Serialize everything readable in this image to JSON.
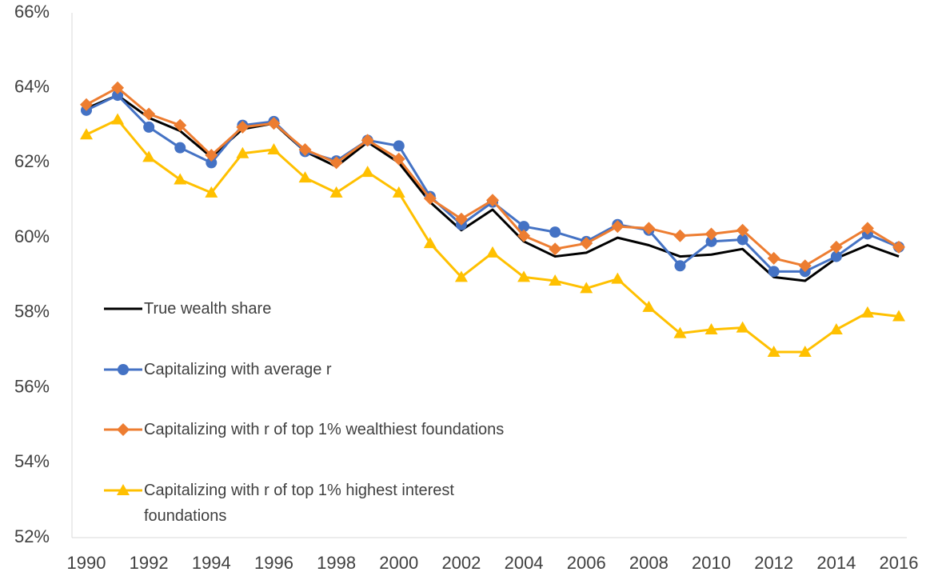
{
  "chart_data": {
    "type": "line",
    "x": [
      1990,
      1991,
      1992,
      1993,
      1994,
      1995,
      1996,
      1997,
      1998,
      1999,
      2000,
      2001,
      2002,
      2003,
      2004,
      2005,
      2006,
      2007,
      2008,
      2009,
      2010,
      2011,
      2012,
      2013,
      2014,
      2015,
      2016
    ],
    "xlim": [
      1990,
      2016
    ],
    "xticks": [
      1990,
      1992,
      1994,
      1996,
      1998,
      2000,
      2002,
      2004,
      2006,
      2008,
      2010,
      2012,
      2014,
      2016
    ],
    "ylim": [
      52,
      66
    ],
    "yticks": [
      {
        "value": 52,
        "label": "52%"
      },
      {
        "value": 54,
        "label": "54%"
      },
      {
        "value": 56,
        "label": "56%"
      },
      {
        "value": 58,
        "label": "58%"
      },
      {
        "value": 60,
        "label": "60%"
      },
      {
        "value": 62,
        "label": "62%"
      },
      {
        "value": 64,
        "label": "64%"
      },
      {
        "value": 66,
        "label": "66%"
      }
    ],
    "legend": "left",
    "series": [
      {
        "name": "True wealth share",
        "color": "#000000",
        "marker": "none",
        "values": [
          63.45,
          63.8,
          63.2,
          62.85,
          62.15,
          62.9,
          63.05,
          62.3,
          61.9,
          62.55,
          62.0,
          60.95,
          60.2,
          60.75,
          59.9,
          59.5,
          59.6,
          60.0,
          59.8,
          59.5,
          59.55,
          59.7,
          58.95,
          58.85,
          59.45,
          59.8,
          59.5
        ]
      },
      {
        "name": "Capitalizing with average r",
        "color": "#4472c4",
        "marker": "circle",
        "values": [
          63.4,
          63.8,
          62.95,
          62.4,
          62.0,
          63.0,
          63.1,
          62.3,
          62.05,
          62.6,
          62.45,
          61.1,
          60.35,
          60.95,
          60.3,
          60.15,
          59.9,
          60.35,
          60.2,
          59.25,
          59.9,
          59.95,
          59.1,
          59.1,
          59.5,
          60.1,
          59.75
        ]
      },
      {
        "name": "Capitalizing with r of top 1% wealthiest foundations",
        "color": "#ed7d31",
        "marker": "diamond",
        "values": [
          63.55,
          64.0,
          63.3,
          63.0,
          62.2,
          62.95,
          63.05,
          62.35,
          62.0,
          62.6,
          62.1,
          61.05,
          60.5,
          61.0,
          60.05,
          59.7,
          59.85,
          60.3,
          60.25,
          60.05,
          60.1,
          60.2,
          59.45,
          59.25,
          59.75,
          60.25,
          59.75
        ]
      },
      {
        "name": "Capitalizing with r of top 1% highest interest foundations",
        "color": "#ffc000",
        "marker": "triangle",
        "values": [
          62.75,
          63.15,
          62.15,
          61.55,
          61.2,
          62.25,
          62.35,
          61.6,
          61.2,
          61.75,
          61.2,
          59.85,
          58.95,
          59.6,
          58.95,
          58.85,
          58.65,
          58.9,
          58.15,
          57.45,
          57.55,
          57.6,
          56.95,
          56.95,
          57.55,
          58.0,
          57.9
        ]
      }
    ]
  }
}
